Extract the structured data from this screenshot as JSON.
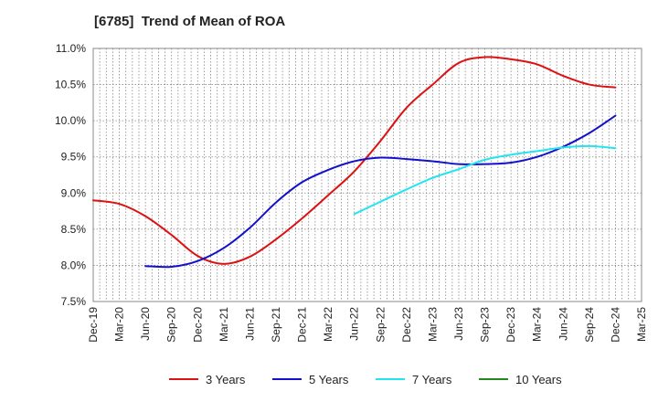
{
  "chart_data": {
    "type": "line",
    "title": "[6785]  Trend of Mean of ROA",
    "xlabel": "",
    "ylabel": "",
    "x": [
      "Dec-19",
      "Mar-20",
      "Jun-20",
      "Sep-20",
      "Dec-20",
      "Mar-21",
      "Jun-21",
      "Sep-21",
      "Dec-21",
      "Mar-22",
      "Jun-22",
      "Sep-22",
      "Dec-22",
      "Mar-23",
      "Jun-23",
      "Sep-23",
      "Dec-23",
      "Mar-24",
      "Jun-24",
      "Sep-24",
      "Dec-24",
      "Mar-25"
    ],
    "y_ticks": [
      "7.5%",
      "8.0%",
      "8.5%",
      "9.0%",
      "9.5%",
      "10.0%",
      "10.5%",
      "11.0%"
    ],
    "ylim": [
      7.5,
      11.0
    ],
    "grid": true,
    "legend_position": "bottom",
    "series": [
      {
        "name": "3 Years",
        "color": "#dd1111",
        "values": [
          8.9,
          8.85,
          8.68,
          8.42,
          8.13,
          8.02,
          8.12,
          8.36,
          8.65,
          8.97,
          9.3,
          9.72,
          10.18,
          10.5,
          10.8,
          10.88,
          10.85,
          10.78,
          10.62,
          10.5,
          10.46,
          null
        ]
      },
      {
        "name": "5 Years",
        "color": "#1111cc",
        "values": [
          null,
          null,
          7.99,
          7.98,
          8.06,
          8.24,
          8.52,
          8.87,
          9.15,
          9.32,
          9.44,
          9.49,
          9.47,
          9.44,
          9.4,
          9.4,
          9.42,
          9.5,
          9.64,
          9.83,
          10.07,
          null
        ]
      },
      {
        "name": "7 Years",
        "color": "#22e5ee",
        "values": [
          null,
          null,
          null,
          null,
          null,
          null,
          null,
          null,
          null,
          null,
          8.71,
          8.88,
          9.05,
          9.21,
          9.33,
          9.46,
          9.53,
          9.58,
          9.63,
          9.65,
          9.62,
          null
        ]
      },
      {
        "name": "10 Years",
        "color": "#228822",
        "values": [
          null,
          null,
          null,
          null,
          null,
          null,
          null,
          null,
          null,
          null,
          null,
          null,
          null,
          null,
          null,
          null,
          null,
          null,
          null,
          null,
          null,
          null
        ]
      }
    ]
  }
}
